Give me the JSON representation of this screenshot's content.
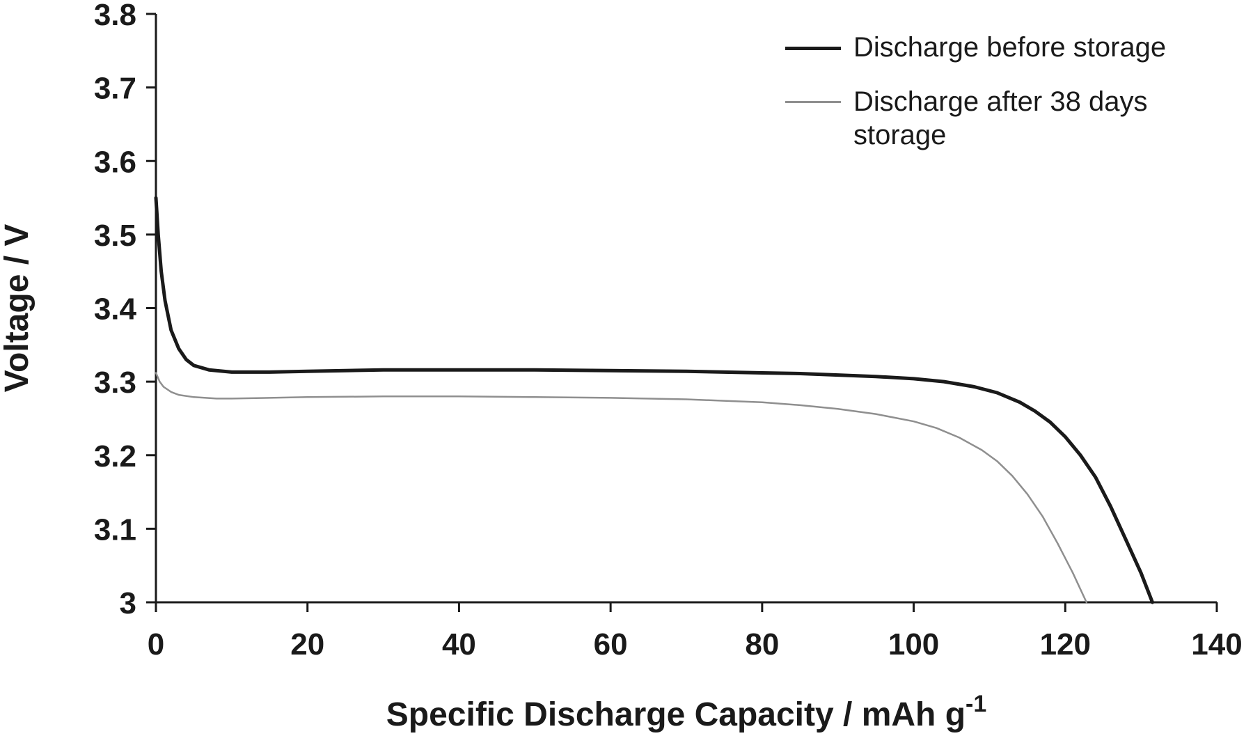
{
  "chart_data": {
    "type": "line",
    "title": "",
    "xlabel": "Specific Discharge Capacity / mAh g",
    "xlabel_superscript": "-1",
    "ylabel": "Voltage / V",
    "xlim": [
      0,
      140
    ],
    "ylim": [
      3.0,
      3.8
    ],
    "grid": false,
    "legend_position": "top-right",
    "background": "#ffffff",
    "axis_color": "#1a1a1a",
    "x_ticks": [
      {
        "value": 0,
        "label": "0"
      },
      {
        "value": 20,
        "label": "20"
      },
      {
        "value": 40,
        "label": "40"
      },
      {
        "value": 60,
        "label": "60"
      },
      {
        "value": 80,
        "label": "80"
      },
      {
        "value": 100,
        "label": "100"
      },
      {
        "value": 120,
        "label": "120"
      },
      {
        "value": 140,
        "label": "140"
      }
    ],
    "y_ticks": [
      {
        "value": 3.0,
        "label": "3"
      },
      {
        "value": 3.1,
        "label": "3.1"
      },
      {
        "value": 3.2,
        "label": "3.2"
      },
      {
        "value": 3.3,
        "label": "3.3"
      },
      {
        "value": 3.4,
        "label": "3.4"
      },
      {
        "value": 3.5,
        "label": "3.5"
      },
      {
        "value": 3.6,
        "label": "3.6"
      },
      {
        "value": 3.7,
        "label": "3.7"
      },
      {
        "value": 3.8,
        "label": "3.8"
      }
    ],
    "series": [
      {
        "name": "Discharge before storage",
        "color": "#1a1a1a",
        "width": 5,
        "points": [
          [
            0,
            3.55
          ],
          [
            0.3,
            3.5
          ],
          [
            0.7,
            3.45
          ],
          [
            1.2,
            3.41
          ],
          [
            2,
            3.37
          ],
          [
            3,
            3.345
          ],
          [
            4,
            3.33
          ],
          [
            5,
            3.322
          ],
          [
            7,
            3.316
          ],
          [
            10,
            3.313
          ],
          [
            15,
            3.313
          ],
          [
            20,
            3.314
          ],
          [
            25,
            3.315
          ],
          [
            30,
            3.316
          ],
          [
            40,
            3.316
          ],
          [
            50,
            3.316
          ],
          [
            60,
            3.315
          ],
          [
            70,
            3.314
          ],
          [
            80,
            3.312
          ],
          [
            85,
            3.311
          ],
          [
            90,
            3.309
          ],
          [
            95,
            3.307
          ],
          [
            100,
            3.304
          ],
          [
            104,
            3.3
          ],
          [
            108,
            3.293
          ],
          [
            111,
            3.285
          ],
          [
            114,
            3.272
          ],
          [
            116,
            3.26
          ],
          [
            118,
            3.245
          ],
          [
            120,
            3.225
          ],
          [
            122,
            3.2
          ],
          [
            124,
            3.17
          ],
          [
            126,
            3.13
          ],
          [
            128,
            3.085
          ],
          [
            130,
            3.04
          ],
          [
            131.5,
            3.0
          ]
        ]
      },
      {
        "name": "Discharge after 38 days storage",
        "color": "#8f8f8f",
        "width": 2.5,
        "points": [
          [
            0,
            3.312
          ],
          [
            0.5,
            3.3
          ],
          [
            1,
            3.293
          ],
          [
            2,
            3.286
          ],
          [
            3,
            3.282
          ],
          [
            5,
            3.279
          ],
          [
            8,
            3.277
          ],
          [
            10,
            3.277
          ],
          [
            15,
            3.278
          ],
          [
            20,
            3.279
          ],
          [
            30,
            3.28
          ],
          [
            40,
            3.28
          ],
          [
            50,
            3.279
          ],
          [
            60,
            3.278
          ],
          [
            70,
            3.276
          ],
          [
            75,
            3.274
          ],
          [
            80,
            3.272
          ],
          [
            85,
            3.268
          ],
          [
            90,
            3.263
          ],
          [
            95,
            3.256
          ],
          [
            100,
            3.246
          ],
          [
            103,
            3.237
          ],
          [
            106,
            3.224
          ],
          [
            109,
            3.207
          ],
          [
            111,
            3.192
          ],
          [
            113,
            3.172
          ],
          [
            115,
            3.147
          ],
          [
            117,
            3.117
          ],
          [
            119,
            3.08
          ],
          [
            121,
            3.04
          ],
          [
            122.8,
            3.0
          ]
        ]
      }
    ]
  }
}
